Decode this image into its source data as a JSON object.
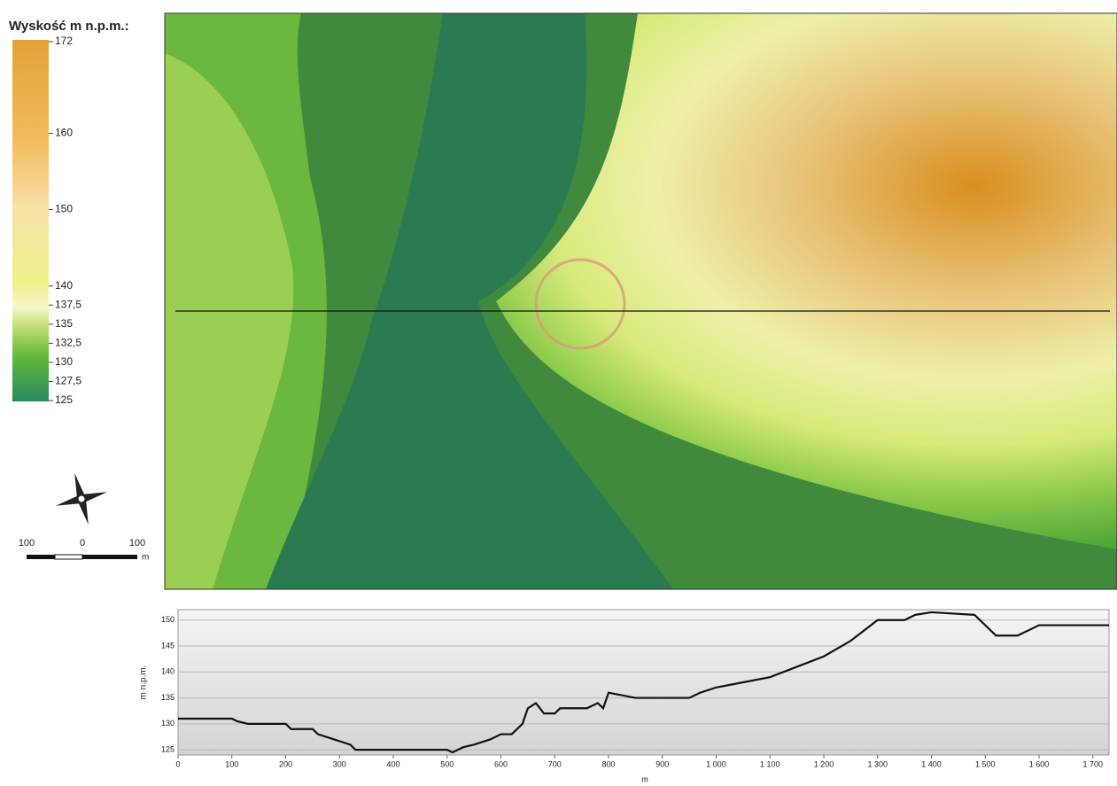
{
  "legend": {
    "title": "Wyskość m n.p.m.:",
    "range": [
      125,
      172
    ],
    "ticks": [
      172,
      160,
      150,
      140,
      {
        "value": 137.5,
        "label": "137,5"
      },
      135,
      {
        "value": 132.5,
        "label": "132,5"
      },
      130,
      {
        "value": 127.5,
        "label": "127,5"
      },
      125
    ]
  },
  "scale_bar": {
    "left": "100",
    "middle": "0",
    "right": "100",
    "unit": "m"
  },
  "chart_data": {
    "type": "line",
    "x_label": "m",
    "y_label": "m n.p.m.",
    "x": [
      0,
      100,
      110,
      130,
      200,
      210,
      250,
      260,
      290,
      320,
      330,
      400,
      500,
      510,
      530,
      550,
      580,
      600,
      620,
      640,
      650,
      665,
      680,
      700,
      710,
      760,
      780,
      790,
      800,
      850,
      950,
      970,
      1000,
      1050,
      1100,
      1150,
      1200,
      1250,
      1300,
      1350,
      1370,
      1400,
      1480,
      1520,
      1560,
      1580,
      1600,
      1730
    ],
    "series": [
      {
        "color": "#111111",
        "values": [
          131,
          131,
          130.5,
          130,
          130,
          129,
          129,
          128,
          127,
          126,
          125,
          125,
          125,
          124.5,
          125.5,
          126,
          127,
          128,
          128,
          130,
          133,
          134,
          132,
          132,
          133,
          133,
          134,
          133,
          136,
          135,
          135,
          136,
          137,
          138,
          139,
          141,
          143,
          146,
          150,
          150,
          151,
          151.5,
          151,
          147,
          147,
          148,
          149,
          149
        ]
      }
    ],
    "xlim": [
      0,
      1730
    ],
    "ylim": [
      124,
      152
    ],
    "xticks": [
      0,
      100,
      200,
      300,
      400,
      500,
      600,
      700,
      800,
      900,
      {
        "value": 1000,
        "label": "1 000"
      },
      {
        "value": 1100,
        "label": "1 100"
      },
      {
        "value": 1200,
        "label": "1 200"
      },
      {
        "value": 1300,
        "label": "1 300"
      },
      {
        "value": 1400,
        "label": "1 400"
      },
      {
        "value": 1500,
        "label": "1 500"
      },
      {
        "value": 1600,
        "label": "1 600"
      },
      {
        "value": 1700,
        "label": "1 700"
      }
    ],
    "yticks": [
      125,
      130,
      135,
      140,
      145,
      150
    ],
    "grid": true
  }
}
